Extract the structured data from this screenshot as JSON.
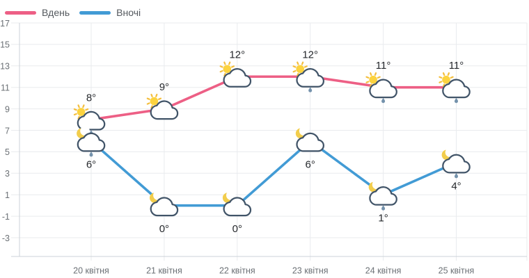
{
  "colors": {
    "background": "#ffffff",
    "grid": "#e9ebee",
    "axis": "#ccd2d8",
    "tick_label": "#6b7075",
    "temp_label": "#26292d",
    "legend_label": "#54595e",
    "cloud_stroke": "#415468",
    "cloud_fill": "#ffffff",
    "sun": "#FCD33F",
    "sun_rays": "#F4BE3D",
    "moon": "#F2CD4C",
    "raindrop": "#7492AC"
  },
  "chart_data": {
    "type": "line",
    "categories": [
      "20 квітня",
      "21 квітня",
      "22 квітня",
      "23 квітня",
      "24 квітня",
      "25 квітня"
    ],
    "series": [
      {
        "name": "Вдень",
        "color": "#ED5F85",
        "values": [
          8,
          9,
          12,
          12,
          11,
          11
        ],
        "point_labels": [
          "8°",
          "9°",
          "12°",
          "12°",
          "11°",
          "11°"
        ],
        "icons": [
          "sun-cloud-rain",
          "sun-cloud",
          "sun-cloud",
          "sun-cloud-rain",
          "sun-cloud-rain",
          "sun-cloud-rain"
        ],
        "label_position": "above"
      },
      {
        "name": "Вночі",
        "color": "#429BD5",
        "values": [
          6,
          0,
          0,
          6,
          1,
          4
        ],
        "point_labels": [
          "6°",
          "0°",
          "0°",
          "6°",
          "1°",
          "4°"
        ],
        "icons": [
          "moon-cloud-rain",
          "moon-cloud",
          "moon-cloud",
          "moon-cloud",
          "moon-cloud-rain",
          "moon-cloud-rain"
        ],
        "label_position": "below"
      }
    ],
    "yticks": [
      17,
      15,
      13,
      11,
      9,
      7,
      5,
      3,
      1,
      -1,
      -3
    ],
    "ylim": [
      -3,
      17
    ],
    "xlabel": "",
    "ylabel": "",
    "grid": true,
    "legend_position": "top-left"
  }
}
